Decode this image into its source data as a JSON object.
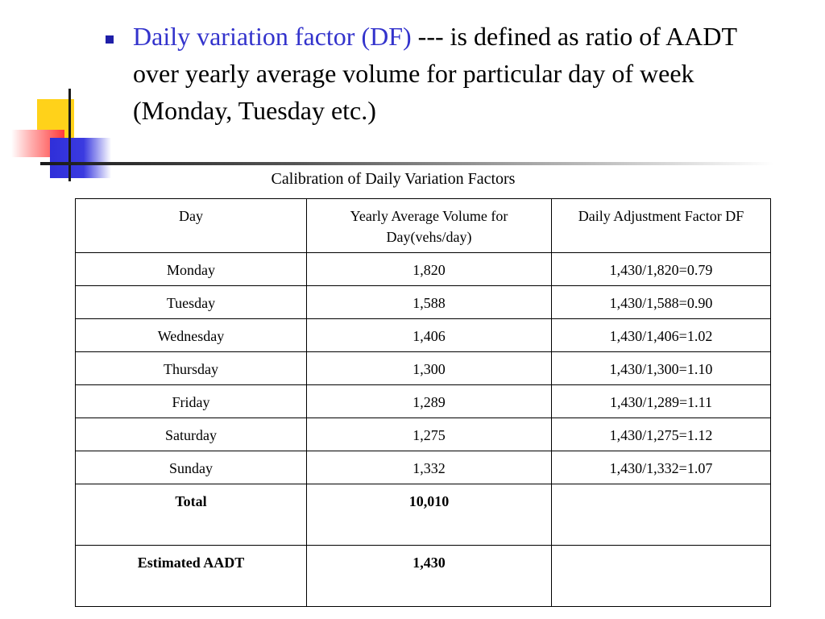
{
  "bullet": {
    "term": "Daily variation factor (DF)",
    "text": " --- is defined as ratio of AADT over yearly average volume for particular day of week (Monday, Tuesday etc.)"
  },
  "table": {
    "caption": "Calibration of Daily Variation Factors",
    "headers": [
      "Day",
      "Yearly Average Volume for Day(vehs/day)",
      "Daily Adjustment Factor DF"
    ],
    "rows": [
      [
        "Monday",
        "1,820",
        "1,430/1,820=0.79"
      ],
      [
        "Tuesday",
        "1,588",
        "1,430/1,588=0.90"
      ],
      [
        "Wednesday",
        "1,406",
        "1,430/1,406=1.02"
      ],
      [
        "Thursday",
        "1,300",
        "1,430/1,300=1.10"
      ],
      [
        "Friday",
        "1,289",
        "1,430/1,289=1.11"
      ],
      [
        "Saturday",
        "1,275",
        "1,430/1,275=1.12"
      ],
      [
        "Sunday",
        "1,332",
        "1,430/1,332=1.07"
      ]
    ],
    "total": [
      "Total",
      "10,010",
      ""
    ],
    "aadt": [
      "Estimated AADT",
      "1,430",
      ""
    ]
  },
  "colors": {
    "term_blue": "#3333cc",
    "bullet_blue": "#1f1fa8",
    "logo_yellow": "#ffd21a",
    "logo_red": "#ff3a3a",
    "logo_blue": "#2f2fd9"
  }
}
